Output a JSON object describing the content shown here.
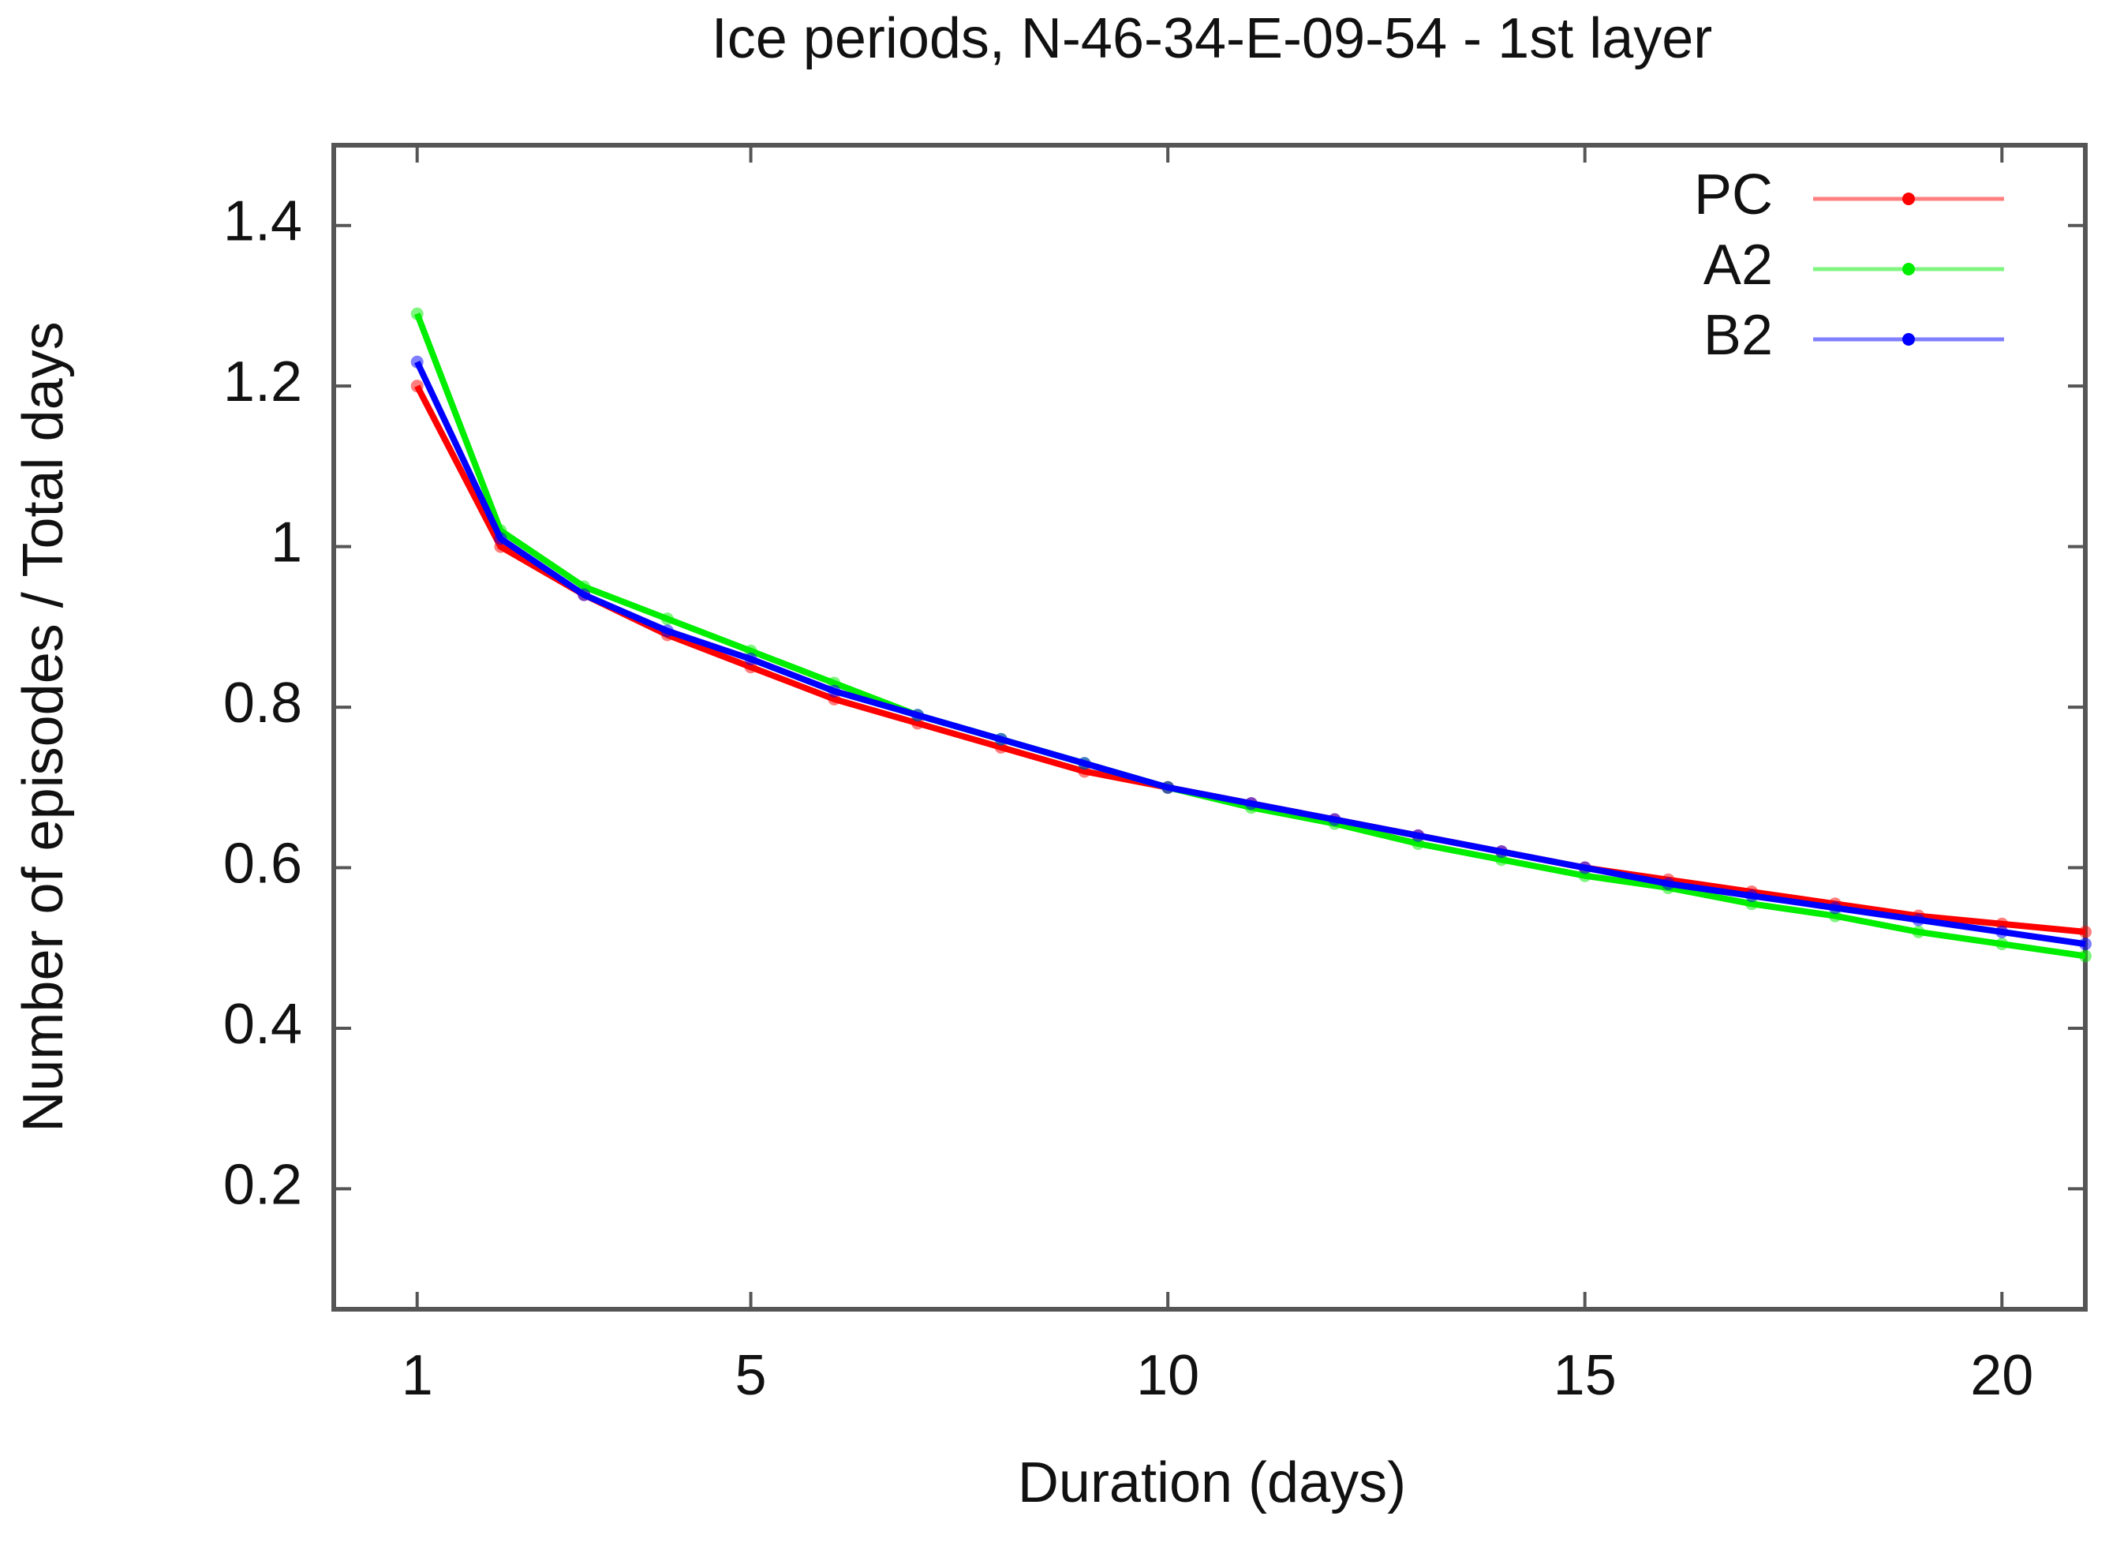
{
  "chart_data": {
    "type": "line",
    "title": "Ice periods, N-46-34-E-09-54 - 1st layer",
    "x_label": "Duration (days)",
    "y_label": "Number of episodes / Total days",
    "x": [
      1,
      2,
      3,
      4,
      5,
      6,
      7,
      8,
      9,
      10,
      11,
      12,
      13,
      14,
      15,
      16,
      17,
      18,
      19,
      20,
      21
    ],
    "series": [
      {
        "name": "PC",
        "color": "#ff0000",
        "values": [
          1.2,
          1.0,
          0.94,
          0.89,
          0.85,
          0.81,
          0.78,
          0.75,
          0.72,
          0.7,
          0.68,
          0.66,
          0.64,
          0.62,
          0.6,
          0.585,
          0.57,
          0.555,
          0.54,
          0.53,
          0.52
        ]
      },
      {
        "name": "A2",
        "color": "#00ee00",
        "values": [
          1.29,
          1.02,
          0.95,
          0.91,
          0.87,
          0.83,
          0.79,
          0.76,
          0.73,
          0.7,
          0.675,
          0.655,
          0.63,
          0.61,
          0.59,
          0.575,
          0.555,
          0.54,
          0.52,
          0.505,
          0.49
        ]
      },
      {
        "name": "B2",
        "color": "#0000ff",
        "values": [
          1.23,
          1.01,
          0.94,
          0.895,
          0.86,
          0.82,
          0.79,
          0.76,
          0.73,
          0.7,
          0.68,
          0.66,
          0.64,
          0.62,
          0.6,
          0.58,
          0.565,
          0.55,
          0.535,
          0.52,
          0.505
        ]
      }
    ],
    "xlim": [
      0,
      21
    ],
    "xticks": [
      1,
      5,
      10,
      15,
      20
    ],
    "ylim": [
      0.05,
      1.5
    ],
    "yticks": [
      0.2,
      0.4,
      0.6,
      0.8,
      1,
      1.2,
      1.4
    ],
    "grid": false,
    "legend": "top-right"
  }
}
